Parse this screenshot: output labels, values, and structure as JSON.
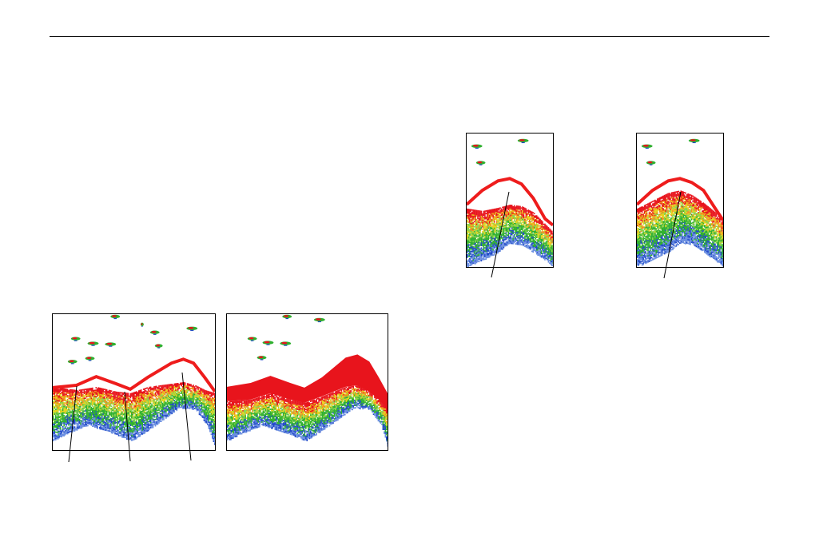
{
  "figures": [
    {
      "id": "fig-large",
      "panels": [
        {
          "id": "panel-a",
          "bottom_trace": "line",
          "fish_echo_count": 10
        },
        {
          "id": "panel-b",
          "bottom_trace": "filled",
          "fish_echo_count": 6
        }
      ],
      "callouts": 3
    },
    {
      "id": "fig-small",
      "panels": [
        {
          "id": "panel-c",
          "bottom_trace": "line",
          "fish_echo_count": 3
        },
        {
          "id": "panel-d",
          "bottom_trace": "line",
          "fish_echo_count": 3
        }
      ],
      "callouts": 2
    }
  ],
  "colors": {
    "bottom_line": "#ee1c1c",
    "echo_red": "#e8141c",
    "echo_orange": "#f08a1c",
    "echo_yellow": "#e6d31c",
    "echo_green": "#2fb02f",
    "echo_lightgreen": "#8cd24a",
    "echo_blue": "#2048c8",
    "echo_lightblue": "#6a8ee0"
  }
}
